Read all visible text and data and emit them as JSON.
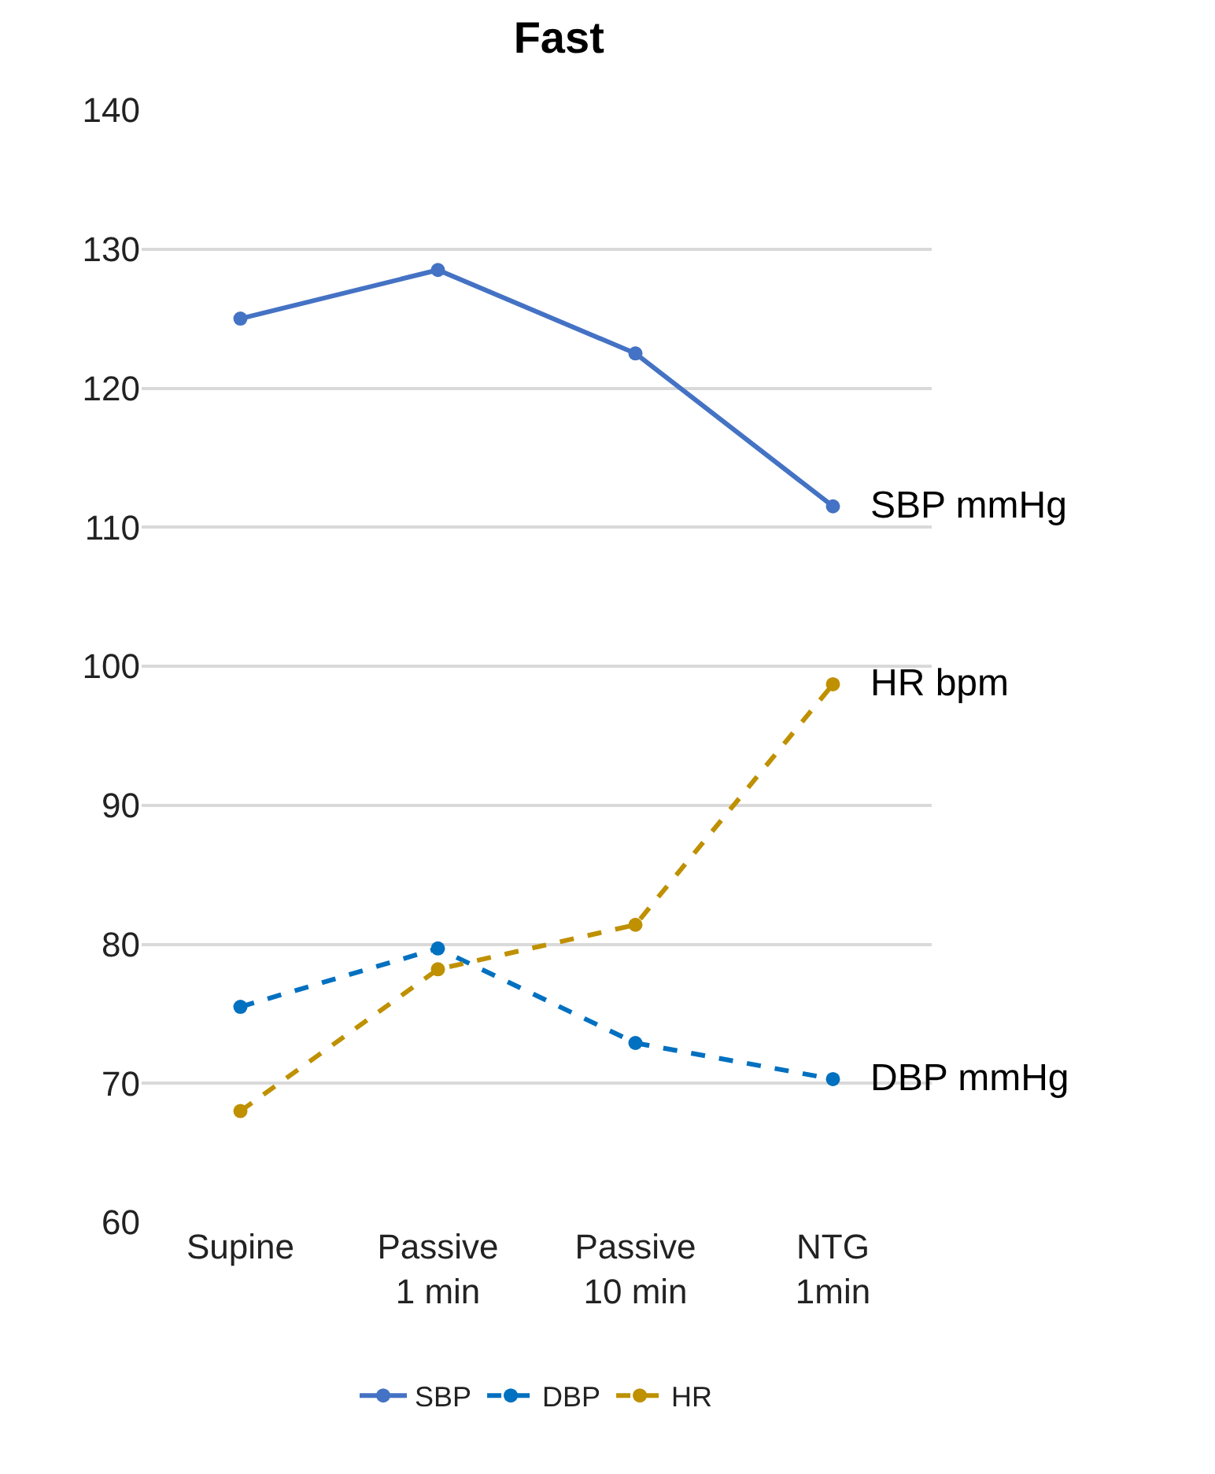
{
  "chart_data": {
    "type": "line",
    "title": "Fast",
    "categories": [
      "Supine",
      "Passive\n1 min",
      "Passive\n10 min",
      "NTG\n1min"
    ],
    "series": [
      {
        "name": "SBP",
        "color": "#4472c4",
        "line_style": "solid",
        "values": [
          125,
          128.5,
          122.5,
          111.5
        ]
      },
      {
        "name": "DBP",
        "color": "#0070c0",
        "line_style": "dashed",
        "values": [
          75.5,
          79.7,
          72.9,
          70.3
        ]
      },
      {
        "name": "HR",
        "color": "#bf9000",
        "line_style": "dashed",
        "values": [
          68,
          78.2,
          81.4,
          98.7
        ]
      }
    ],
    "annotations": [
      {
        "text": "SBP mmHg",
        "x": "NTG\n1min",
        "y": 111.5
      },
      {
        "text": "HR bpm",
        "x": "NTG\n1min",
        "y": 98.7
      },
      {
        "text": "DBP mmHg",
        "x": "NTG\n1min",
        "y": 70.3
      }
    ],
    "ylim": [
      60,
      140
    ],
    "yticks": [
      60,
      70,
      80,
      90,
      100,
      110,
      120,
      130,
      140
    ],
    "grid": "y",
    "legend": "bottom",
    "marker": "circle"
  }
}
